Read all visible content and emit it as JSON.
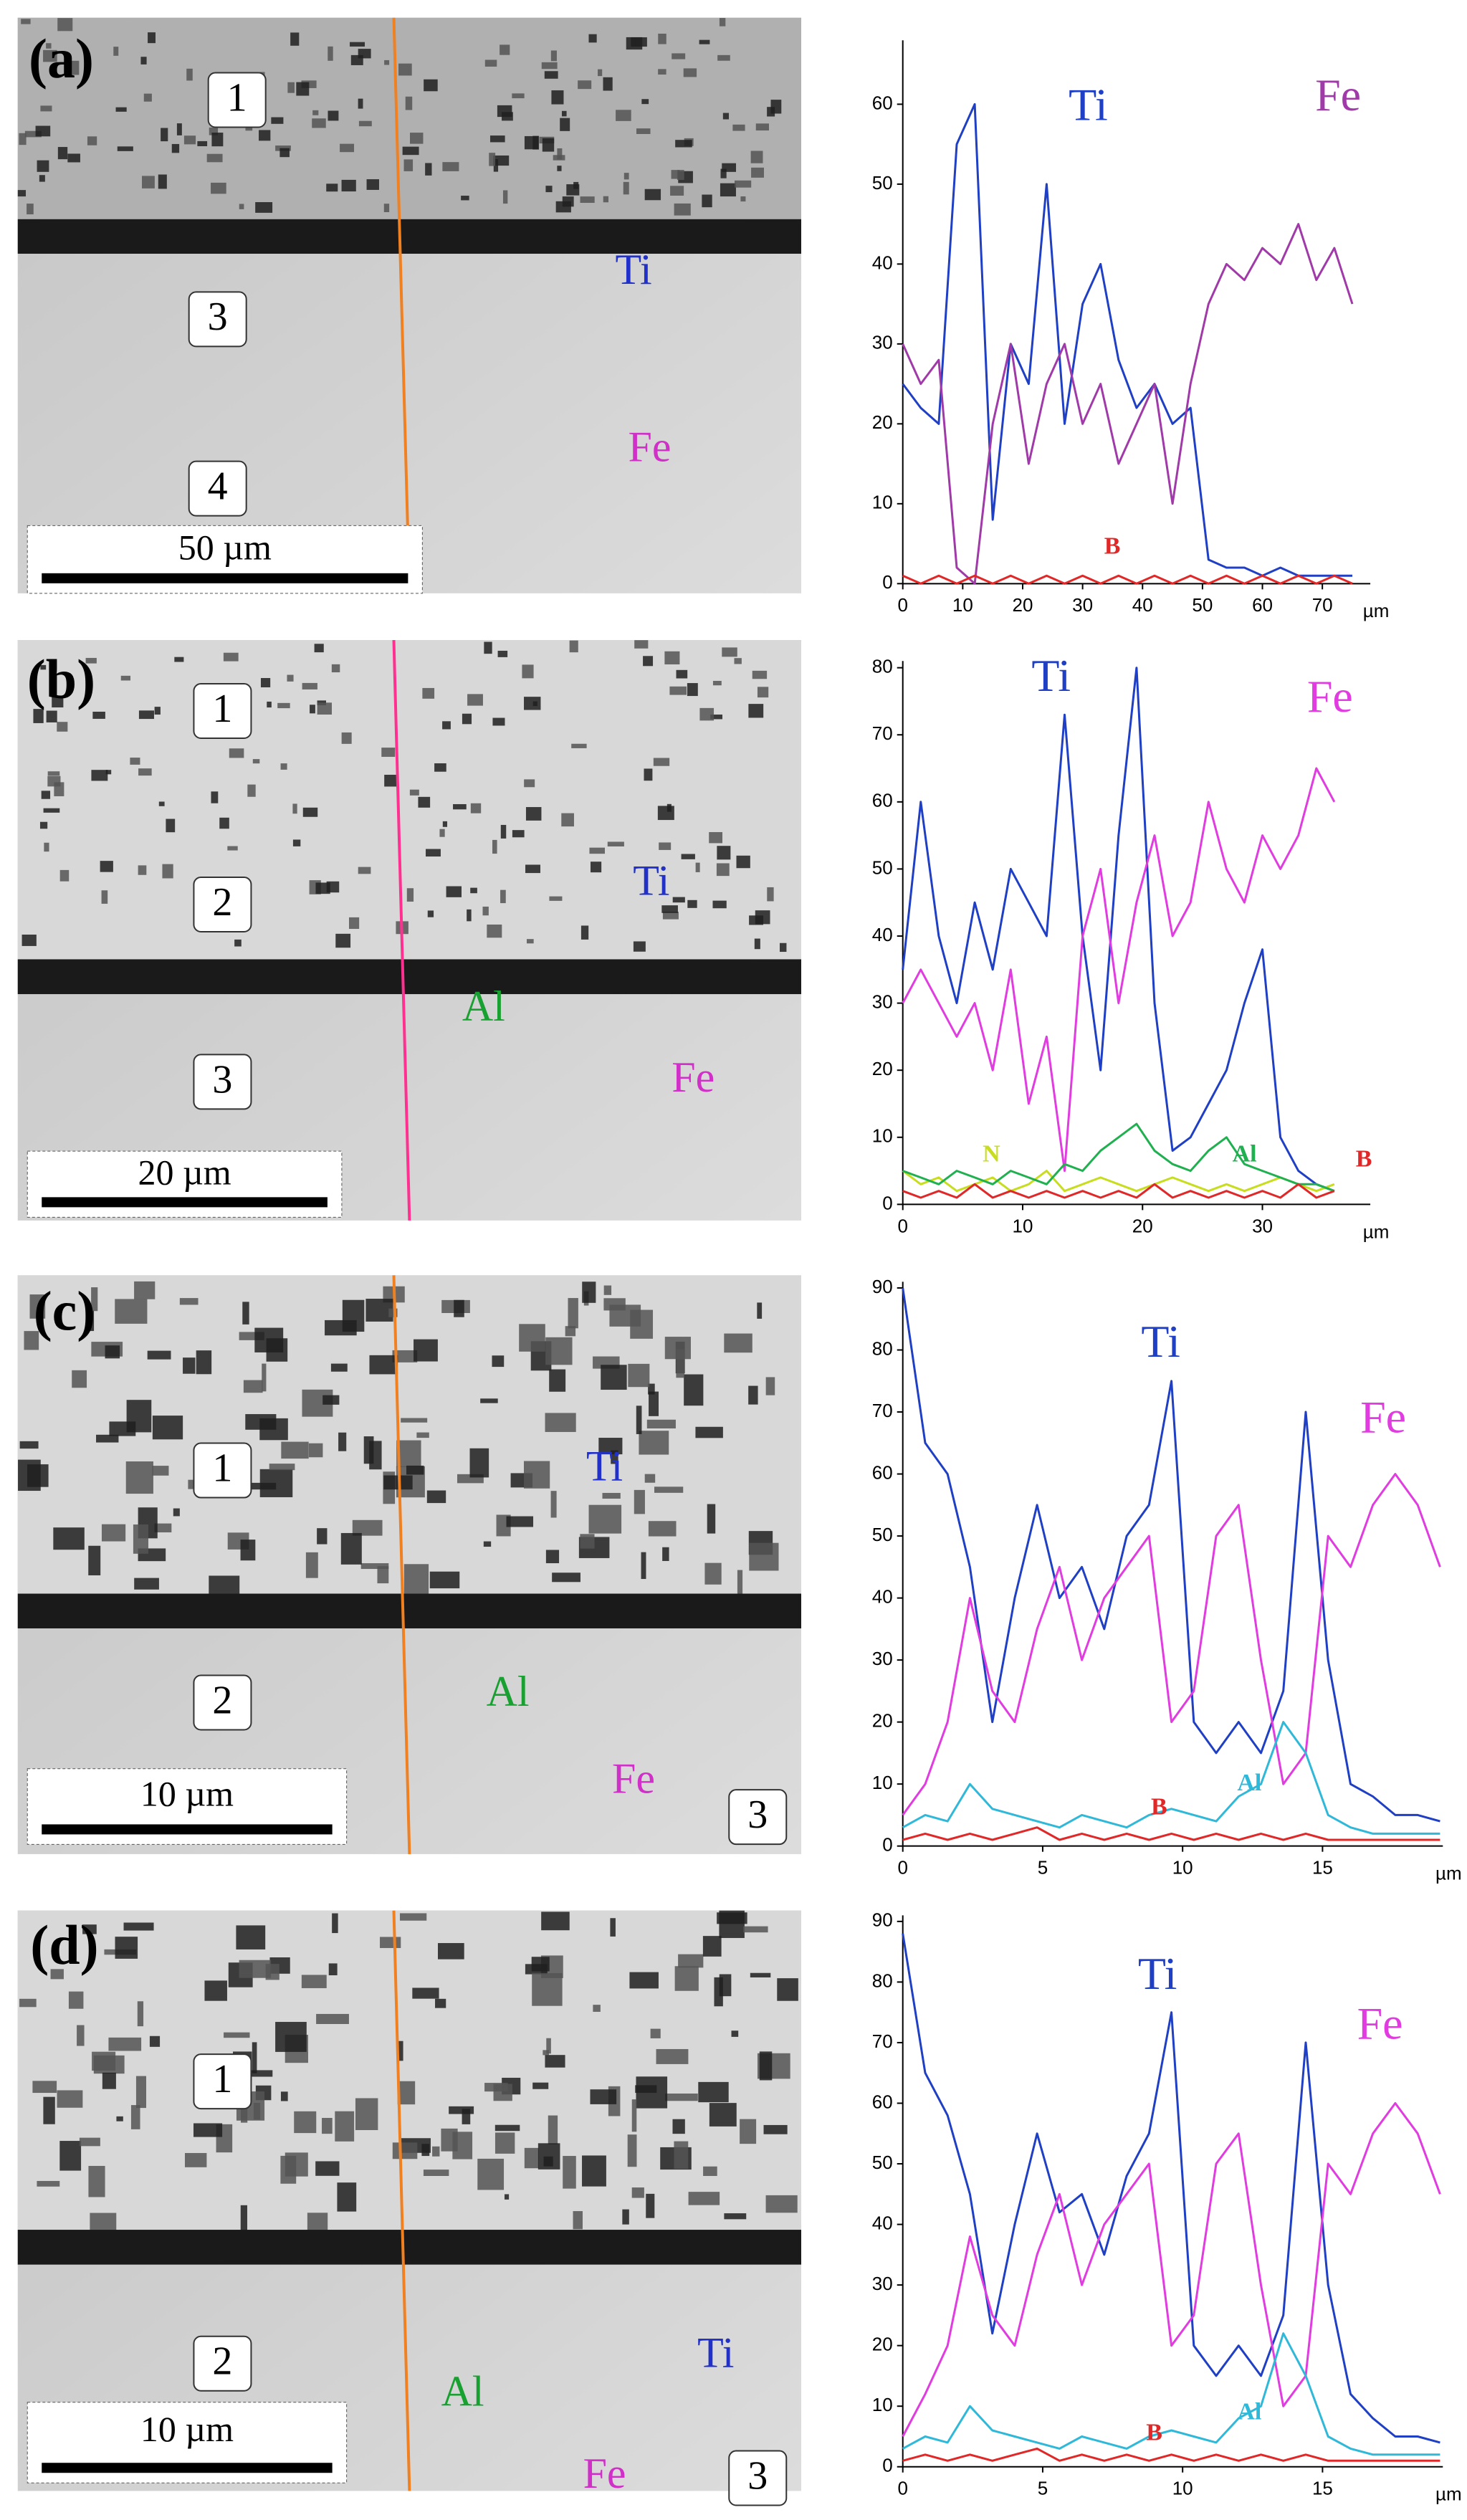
{
  "images": [
    {
      "panel_label": "(a)",
      "regions": [
        "1",
        "3",
        "4"
      ],
      "overlay_labels": [
        "Ti",
        "Fe"
      ],
      "scale_bar": "50 µm"
    },
    {
      "panel_label": "(b)",
      "regions": [
        "1",
        "2",
        "3"
      ],
      "overlay_labels": [
        "Ti",
        "Al",
        "Fe"
      ],
      "scale_bar": "20 µm"
    },
    {
      "panel_label": "(c)",
      "regions": [
        "1",
        "2",
        "3"
      ],
      "overlay_labels": [
        "Ti",
        "Al",
        "Fe"
      ],
      "scale_bar": "10 µm"
    },
    {
      "panel_label": "(d)",
      "regions": [
        "1",
        "2",
        "3"
      ],
      "overlay_labels": [
        "Al",
        "Ti",
        "Fe"
      ],
      "scale_bar": "10 µm"
    }
  ],
  "chart_data": [
    {
      "type": "line",
      "x_label": "µm",
      "x": [
        0,
        3,
        6,
        9,
        12,
        15,
        18,
        21,
        24,
        27,
        30,
        33,
        36,
        39,
        42,
        45,
        48,
        51,
        54,
        57,
        60,
        63,
        66,
        69,
        72,
        75
      ],
      "xlim": [
        0,
        78
      ],
      "xticks": [
        0,
        10,
        20,
        30,
        40,
        50,
        60,
        70
      ],
      "ylim": [
        0,
        68
      ],
      "yticks": [
        0,
        10,
        20,
        30,
        40,
        50,
        60
      ],
      "series": [
        {
          "name": "Ti",
          "color": "#1f3fc4",
          "values": [
            25,
            22,
            20,
            55,
            60,
            8,
            30,
            25,
            50,
            20,
            35,
            40,
            28,
            22,
            25,
            20,
            22,
            3,
            2,
            2,
            1,
            2,
            1,
            1,
            1,
            1
          ]
        },
        {
          "name": "Fe",
          "color": "#a03aa8",
          "values": [
            30,
            25,
            28,
            2,
            0,
            20,
            30,
            15,
            25,
            30,
            20,
            25,
            15,
            20,
            25,
            10,
            25,
            35,
            40,
            38,
            42,
            40,
            45,
            38,
            42,
            35
          ]
        },
        {
          "name": "B",
          "color": "#e02828",
          "values": [
            1,
            0,
            1,
            0,
            1,
            0,
            1,
            0,
            1,
            0,
            1,
            0,
            1,
            0,
            1,
            0,
            1,
            0,
            1,
            0,
            1,
            0,
            1,
            0,
            1,
            0
          ]
        }
      ]
    },
    {
      "type": "line",
      "x_label": "µm",
      "x": [
        0,
        1.5,
        3,
        4.5,
        6,
        7.5,
        9,
        10.5,
        12,
        13.5,
        15,
        16.5,
        18,
        19.5,
        21,
        22.5,
        24,
        25.5,
        27,
        28.5,
        30,
        31.5,
        33,
        34.5,
        36
      ],
      "xlim": [
        0,
        39
      ],
      "xticks": [
        0,
        10,
        20,
        30
      ],
      "ylim": [
        0,
        81
      ],
      "yticks": [
        0,
        10,
        20,
        30,
        40,
        50,
        60,
        70,
        80
      ],
      "series": [
        {
          "name": "Ti",
          "color": "#1f3fc4",
          "values": [
            35,
            60,
            40,
            30,
            45,
            35,
            50,
            45,
            40,
            73,
            40,
            20,
            55,
            80,
            30,
            8,
            10,
            15,
            20,
            30,
            38,
            10,
            5,
            3,
            2
          ]
        },
        {
          "name": "Fe",
          "color": "#e03ce0",
          "values": [
            30,
            35,
            30,
            25,
            30,
            20,
            35,
            15,
            25,
            5,
            40,
            50,
            30,
            45,
            55,
            40,
            45,
            60,
            50,
            45,
            55,
            50,
            55,
            65,
            60
          ]
        },
        {
          "name": "N",
          "color": "#c8dc20",
          "values": [
            5,
            3,
            4,
            2,
            3,
            4,
            2,
            3,
            5,
            2,
            3,
            4,
            3,
            2,
            3,
            4,
            3,
            2,
            3,
            2,
            3,
            4,
            3,
            2,
            3
          ]
        },
        {
          "name": "Al",
          "color": "#20b050",
          "values": [
            5,
            4,
            3,
            5,
            4,
            3,
            5,
            4,
            3,
            6,
            5,
            8,
            10,
            12,
            8,
            6,
            5,
            8,
            10,
            6,
            5,
            4,
            3,
            3,
            2
          ]
        },
        {
          "name": "B",
          "color": "#e02828",
          "values": [
            2,
            1,
            2,
            1,
            3,
            1,
            2,
            1,
            2,
            1,
            2,
            1,
            2,
            1,
            3,
            1,
            2,
            1,
            2,
            1,
            2,
            1,
            3,
            1,
            2
          ]
        }
      ]
    },
    {
      "type": "line",
      "x_label": "µm",
      "x": [
        0,
        0.8,
        1.6,
        2.4,
        3.2,
        4,
        4.8,
        5.6,
        6.4,
        7.2,
        8,
        8.8,
        9.6,
        10.4,
        11.2,
        12,
        12.8,
        13.6,
        14.4,
        15.2,
        16,
        16.8,
        17.6,
        18.4,
        19.2
      ],
      "xlim": [
        0,
        19.3
      ],
      "xticks": [
        0,
        5,
        10,
        15
      ],
      "ylim": [
        0,
        91
      ],
      "yticks": [
        0,
        10,
        20,
        30,
        40,
        50,
        60,
        70,
        80,
        90
      ],
      "series": [
        {
          "name": "Ti",
          "color": "#1f3fc4",
          "values": [
            90,
            65,
            60,
            45,
            20,
            40,
            55,
            40,
            45,
            35,
            50,
            55,
            75,
            20,
            15,
            20,
            15,
            25,
            70,
            30,
            10,
            8,
            5,
            5,
            4
          ]
        },
        {
          "name": "Fe",
          "color": "#e03ce0",
          "values": [
            5,
            10,
            20,
            40,
            25,
            20,
            35,
            45,
            30,
            40,
            45,
            50,
            20,
            25,
            50,
            55,
            30,
            10,
            15,
            50,
            45,
            55,
            60,
            55,
            45
          ]
        },
        {
          "name": "Al",
          "color": "#30b8d8",
          "values": [
            3,
            5,
            4,
            10,
            6,
            5,
            4,
            3,
            5,
            4,
            3,
            5,
            6,
            5,
            4,
            8,
            10,
            20,
            15,
            5,
            3,
            2,
            2,
            2,
            2
          ]
        },
        {
          "name": "B",
          "color": "#e02828",
          "values": [
            1,
            2,
            1,
            2,
            1,
            2,
            3,
            1,
            2,
            1,
            2,
            1,
            2,
            1,
            2,
            1,
            2,
            1,
            2,
            1,
            1,
            1,
            1,
            1,
            1
          ]
        }
      ]
    },
    {
      "type": "line",
      "x_label": "µm",
      "x": [
        0,
        0.8,
        1.6,
        2.4,
        3.2,
        4,
        4.8,
        5.6,
        6.4,
        7.2,
        8,
        8.8,
        9.6,
        10.4,
        11.2,
        12,
        12.8,
        13.6,
        14.4,
        15.2,
        16,
        16.8,
        17.6,
        18.4,
        19.2
      ],
      "xlim": [
        0,
        19.3
      ],
      "xticks": [
        0,
        5,
        10,
        15
      ],
      "ylim": [
        0,
        91
      ],
      "yticks": [
        0,
        10,
        20,
        30,
        40,
        50,
        60,
        70,
        80,
        90
      ],
      "series": [
        {
          "name": "Ti",
          "color": "#1f3fc4",
          "values": [
            88,
            65,
            58,
            45,
            22,
            40,
            55,
            42,
            45,
            35,
            48,
            55,
            75,
            20,
            15,
            20,
            15,
            25,
            70,
            30,
            12,
            8,
            5,
            5,
            4
          ]
        },
        {
          "name": "Fe",
          "color": "#e03ce0",
          "values": [
            5,
            12,
            20,
            38,
            25,
            20,
            35,
            45,
            30,
            40,
            45,
            50,
            20,
            25,
            50,
            55,
            30,
            10,
            15,
            50,
            45,
            55,
            60,
            55,
            45
          ]
        },
        {
          "name": "Al",
          "color": "#30b8d8",
          "values": [
            3,
            5,
            4,
            10,
            6,
            5,
            4,
            3,
            5,
            4,
            3,
            5,
            6,
            5,
            4,
            8,
            10,
            22,
            15,
            5,
            3,
            2,
            2,
            2,
            2
          ]
        },
        {
          "name": "B",
          "color": "#e02828",
          "values": [
            1,
            2,
            1,
            2,
            1,
            2,
            3,
            1,
            2,
            1,
            2,
            1,
            2,
            1,
            2,
            1,
            2,
            1,
            2,
            1,
            1,
            1,
            1,
            1,
            1
          ]
        }
      ]
    }
  ]
}
